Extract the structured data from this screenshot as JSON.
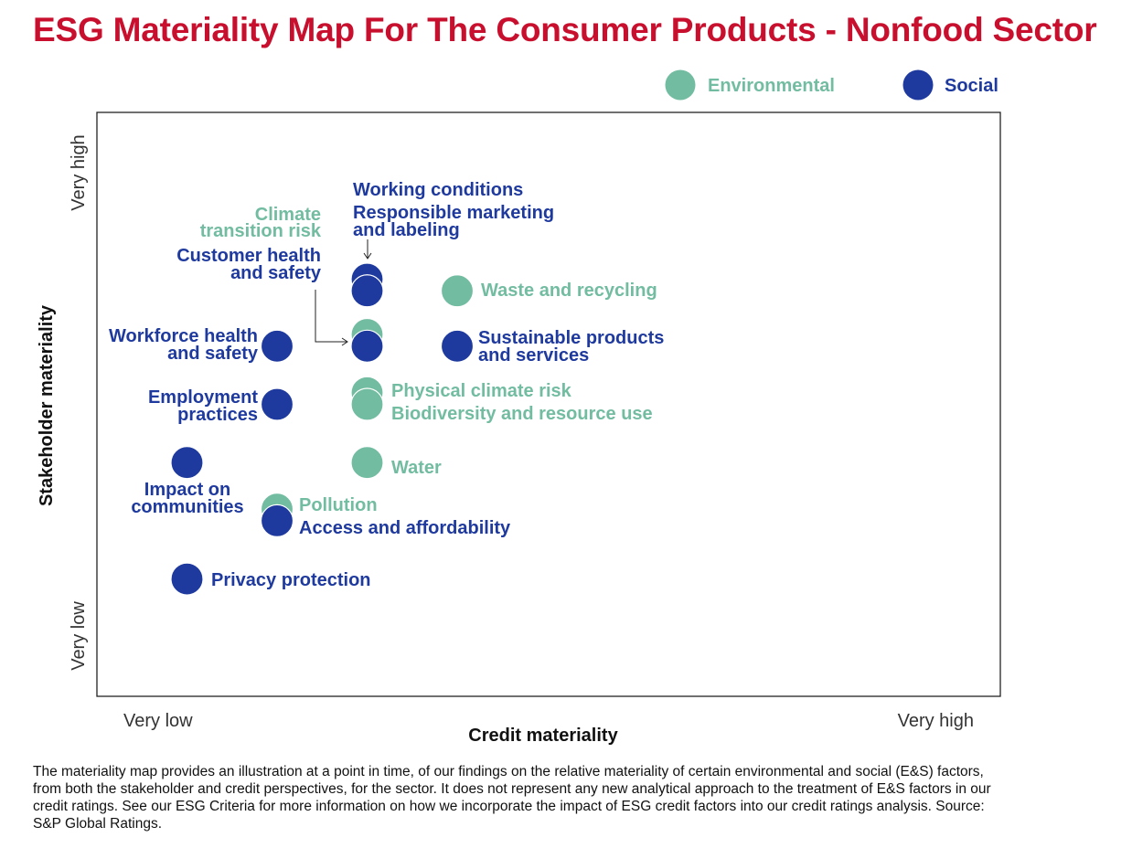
{
  "title": "ESG Materiality Map For The Consumer Products - Nonfood Sector",
  "footnote": "The materiality map provides an illustration at a point in time, of our findings on the relative materiality of certain environmental and social (E&S) factors, from both the stakeholder and credit perspectives, for the sector. It does not represent any new analytical approach to the treatment of E&S factors in our credit ratings. See our ESG Criteria for more information on how we incorporate the impact of ESG credit factors into our credit ratings analysis. Source: S&P Global Ratings.",
  "colors": {
    "title": "#c8102e",
    "environmental": "#72bca1",
    "social": "#1f3a9e"
  },
  "chart_data": {
    "type": "scatter",
    "title": "ESG Materiality Map For The Consumer Products - Nonfood Sector",
    "xlabel": "Credit materiality",
    "ylabel": "Stakeholder materiality",
    "x_ticks": [
      "Very low",
      "Very high"
    ],
    "y_ticks": [
      "Very low",
      "Very high"
    ],
    "xlim": [
      0,
      10
    ],
    "ylim": [
      0,
      10
    ],
    "grid": false,
    "legend_position": "top-right",
    "series": [
      {
        "name": "Environmental",
        "key": "environmental"
      },
      {
        "name": "Social",
        "key": "social"
      }
    ],
    "points": [
      {
        "label": "Working conditions",
        "category": "social",
        "x": 3,
        "y": 7.15
      },
      {
        "label": "Responsible marketing and labeling",
        "category": "social",
        "x": 3,
        "y": 6.95
      },
      {
        "label": "Waste and recycling",
        "category": "environmental",
        "x": 4,
        "y": 6.95
      },
      {
        "label": "Climate transition risk",
        "category": "environmental",
        "x": 3,
        "y": 6.2
      },
      {
        "label": "Customer health and safety",
        "category": "social",
        "x": 3,
        "y": 6.0
      },
      {
        "label": "Workforce health and safety",
        "category": "social",
        "x": 2,
        "y": 6.0
      },
      {
        "label": "Sustainable products and services",
        "category": "social",
        "x": 4,
        "y": 6.0
      },
      {
        "label": "Physical climate risk",
        "category": "environmental",
        "x": 3,
        "y": 5.2
      },
      {
        "label": "Biodiversity and resource use",
        "category": "environmental",
        "x": 3,
        "y": 5.0
      },
      {
        "label": "Employment practices",
        "category": "social",
        "x": 2,
        "y": 5.0
      },
      {
        "label": "Impact on communities",
        "category": "social",
        "x": 1,
        "y": 4.0
      },
      {
        "label": "Water",
        "category": "environmental",
        "x": 3,
        "y": 4.0
      },
      {
        "label": "Pollution",
        "category": "environmental",
        "x": 2,
        "y": 3.2
      },
      {
        "label": "Access and affordability",
        "category": "social",
        "x": 2,
        "y": 3.0
      },
      {
        "label": "Privacy protection",
        "category": "social",
        "x": 1,
        "y": 2.0
      }
    ],
    "annotations": [
      {
        "text": "Working conditions",
        "category": "social"
      },
      {
        "text": "Responsible marketing",
        "category": "social"
      },
      {
        "text": "and labeling",
        "category": "social"
      },
      {
        "text": "Climate",
        "category": "environmental"
      },
      {
        "text": "transition risk",
        "category": "environmental"
      },
      {
        "text": "Customer health",
        "category": "social"
      },
      {
        "text": "and safety",
        "category": "social"
      },
      {
        "text": "Waste and recycling",
        "category": "environmental"
      },
      {
        "text": "Workforce health",
        "category": "social"
      },
      {
        "text": "and safety",
        "category": "social"
      },
      {
        "text": "Sustainable products",
        "category": "social"
      },
      {
        "text": "and services",
        "category": "social"
      },
      {
        "text": "Employment",
        "category": "social"
      },
      {
        "text": "practices",
        "category": "social"
      },
      {
        "text": "Physical climate risk",
        "category": "environmental"
      },
      {
        "text": "Biodiversity and resource use",
        "category": "environmental"
      },
      {
        "text": "Water",
        "category": "environmental"
      },
      {
        "text": "Impact on",
        "category": "social"
      },
      {
        "text": "communities",
        "category": "social"
      },
      {
        "text": "Pollution",
        "category": "environmental"
      },
      {
        "text": "Access and affordability",
        "category": "social"
      },
      {
        "text": "Privacy protection",
        "category": "social"
      }
    ]
  }
}
